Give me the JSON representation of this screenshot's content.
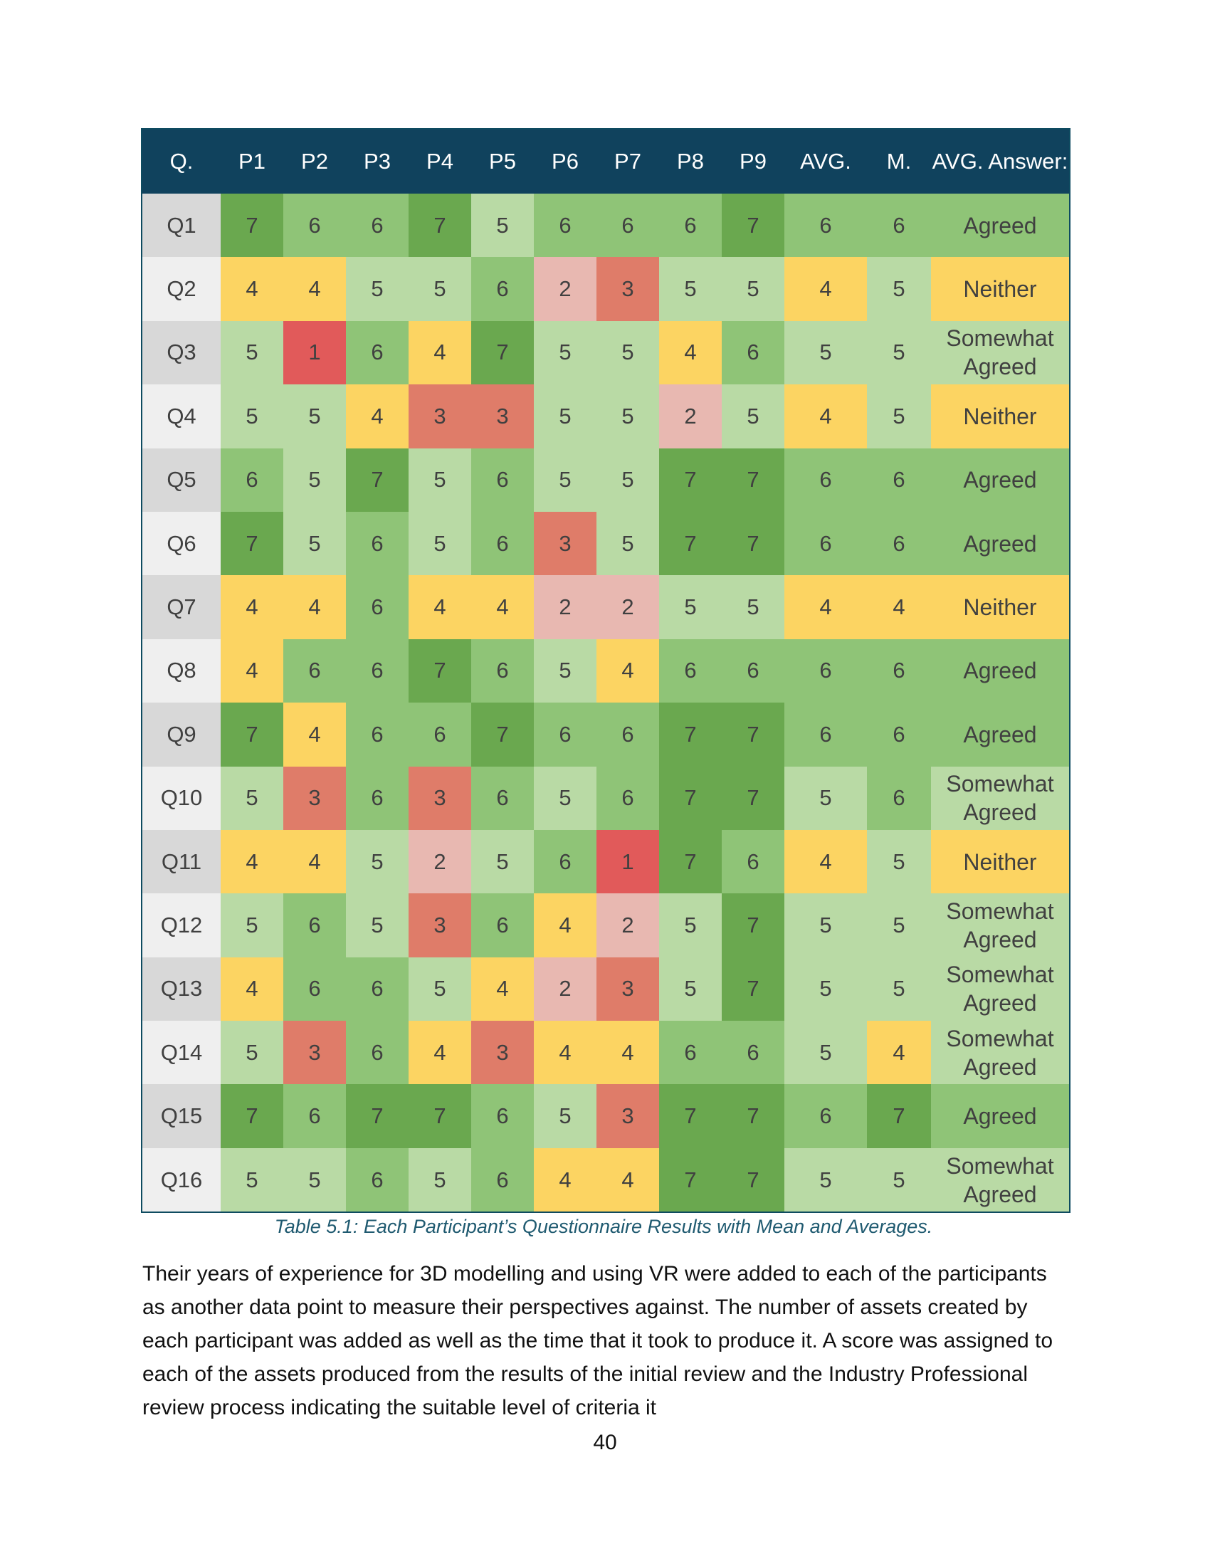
{
  "table": {
    "headers": [
      "Q.",
      "P1",
      "P2",
      "P3",
      "P4",
      "P5",
      "P6",
      "P7",
      "P8",
      "P9",
      "AVG.",
      "M.",
      "AVG. Answer:"
    ],
    "rows": [
      {
        "q": "Q1",
        "scores": [
          "7",
          "6",
          "6",
          "7",
          "5",
          "6",
          "6",
          "6",
          "7"
        ],
        "avg": "6",
        "median": "6",
        "answer": "Agreed"
      },
      {
        "q": "Q2",
        "scores": [
          "4",
          "4",
          "5",
          "5",
          "6",
          "2",
          "3",
          "5",
          "5"
        ],
        "avg": "4",
        "median": "5",
        "answer": "Neither"
      },
      {
        "q": "Q3",
        "scores": [
          "5",
          "1",
          "6",
          "4",
          "7",
          "5",
          "5",
          "4",
          "6"
        ],
        "avg": "5",
        "median": "5",
        "answer": "Somewhat Agreed"
      },
      {
        "q": "Q4",
        "scores": [
          "5",
          "5",
          "4",
          "3",
          "3",
          "5",
          "5",
          "2",
          "5"
        ],
        "avg": "4",
        "median": "5",
        "answer": "Neither"
      },
      {
        "q": "Q5",
        "scores": [
          "6",
          "5",
          "7",
          "5",
          "6",
          "5",
          "5",
          "7",
          "7"
        ],
        "avg": "6",
        "median": "6",
        "answer": "Agreed"
      },
      {
        "q": "Q6",
        "scores": [
          "7",
          "5",
          "6",
          "5",
          "6",
          "3",
          "5",
          "7",
          "7"
        ],
        "avg": "6",
        "median": "6",
        "answer": "Agreed"
      },
      {
        "q": "Q7",
        "scores": [
          "4",
          "4",
          "6",
          "4",
          "4",
          "2",
          "2",
          "5",
          "5"
        ],
        "avg": "4",
        "median": "4",
        "answer": "Neither"
      },
      {
        "q": "Q8",
        "scores": [
          "4",
          "6",
          "6",
          "7",
          "6",
          "5",
          "4",
          "6",
          "6"
        ],
        "avg": "6",
        "median": "6",
        "answer": "Agreed"
      },
      {
        "q": "Q9",
        "scores": [
          "7",
          "4",
          "6",
          "6",
          "7",
          "6",
          "6",
          "7",
          "7"
        ],
        "avg": "6",
        "median": "6",
        "answer": "Agreed"
      },
      {
        "q": "Q10",
        "scores": [
          "5",
          "3",
          "6",
          "3",
          "6",
          "5",
          "6",
          "7",
          "7"
        ],
        "avg": "5",
        "median": "6",
        "answer": "Somewhat Agreed"
      },
      {
        "q": "Q11",
        "scores": [
          "4",
          "4",
          "5",
          "2",
          "5",
          "6",
          "1",
          "7",
          "6"
        ],
        "avg": "4",
        "median": "5",
        "answer": "Neither"
      },
      {
        "q": "Q12",
        "scores": [
          "5",
          "6",
          "5",
          "3",
          "6",
          "4",
          "2",
          "5",
          "7"
        ],
        "avg": "5",
        "median": "5",
        "answer": "Somewhat Agreed"
      },
      {
        "q": "Q13",
        "scores": [
          "4",
          "6",
          "6",
          "5",
          "4",
          "2",
          "3",
          "5",
          "7"
        ],
        "avg": "5",
        "median": "5",
        "answer": "Somewhat Agreed"
      },
      {
        "q": "Q14",
        "scores": [
          "5",
          "3",
          "6",
          "4",
          "3",
          "4",
          "4",
          "6",
          "6"
        ],
        "avg": "5",
        "median": "4",
        "answer": "Somewhat Agreed"
      },
      {
        "q": "Q15",
        "scores": [
          "7",
          "6",
          "7",
          "7",
          "6",
          "5",
          "3",
          "7",
          "7"
        ],
        "avg": "6",
        "median": "7",
        "answer": "Agreed"
      },
      {
        "q": "Q16",
        "scores": [
          "5",
          "5",
          "6",
          "5",
          "6",
          "4",
          "4",
          "7",
          "7"
        ],
        "avg": "5",
        "median": "5",
        "answer": "Somewhat Agreed"
      }
    ]
  },
  "score_colors": {
    "1": "#e15a5a",
    "2": "#e8b8b1",
    "3": "#df7c69",
    "4": "#fcd462",
    "5": "#b9daa5",
    "6": "#8fc477",
    "7": "#6aa84f"
  },
  "answer_colors": {
    "Agreed": "#8fc477",
    "Neither": "#fcd462",
    "Somewhat Agreed": "#b9daa5"
  },
  "caption": "Table 5.1: Each Participant’s Questionnaire Results with Mean and Averages.",
  "paragraph": "Their years of experience for 3D modelling and using VR were added to each of the participants as another data point to measure their perspectives against. The number of assets created by each participant was added as well as the time that it took to produce it. A score was assigned to each of the assets produced from the results of the initial review and the Industry Professional review process indicating the suitable level of criteria it",
  "page_number": "40"
}
